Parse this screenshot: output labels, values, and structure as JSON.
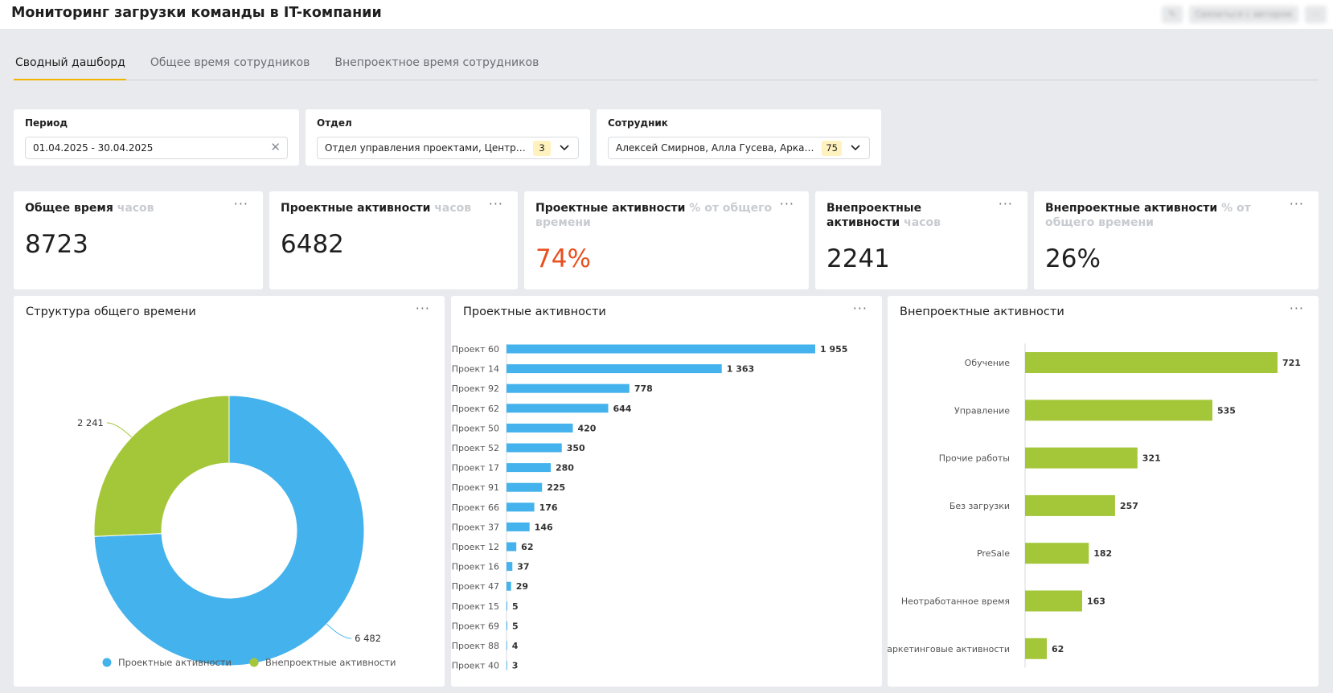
{
  "header": {
    "title": "Мониторинг загрузки команды в IT-компании",
    "actions": [
      "Связаться с автором"
    ]
  },
  "tabs": [
    {
      "label": "Сводный дашборд",
      "active": true
    },
    {
      "label": "Общее время сотрудников",
      "active": false
    },
    {
      "label": "Внепроектное время сотрудников",
      "active": false
    }
  ],
  "filters": {
    "period": {
      "label": "Период",
      "value": "01.04.2025 - 30.04.2025"
    },
    "department": {
      "label": "Отдел",
      "value": "Отдел управления проектами, Центр ан...",
      "count": "3"
    },
    "employee": {
      "label": "Сотрудник",
      "value": "Алексей Смирнов, Алла Гусева, Аркади...",
      "count": "75"
    }
  },
  "kpis": [
    {
      "title": "Общее время",
      "unit": "часов",
      "value": "8723"
    },
    {
      "title": "Проектные активности",
      "unit": "часов",
      "value": "6482"
    },
    {
      "title": "Проектные активности",
      "unit": "% от общего времени",
      "value": "74%"
    },
    {
      "title": "Внепроектные активности",
      "unit": "часов",
      "value": "2241"
    },
    {
      "title": "Внепроектные активности",
      "unit": "% от общего времени",
      "value": "26%"
    }
  ],
  "colors": {
    "blue": "#44b2ec",
    "green": "#a4c73a",
    "accent_red": "#e8501f",
    "tab_underline": "#f2b400"
  },
  "chart_data": [
    {
      "type": "pie",
      "title": "Структура общего времени",
      "categories": [
        "Проектные активности",
        "Внепроектные активности"
      ],
      "values": [
        6482,
        2241
      ],
      "labels": [
        "6 482",
        "2 241"
      ],
      "colors": [
        "#44b2ec",
        "#a4c73a"
      ],
      "donut": true,
      "legend": "bottom"
    },
    {
      "type": "bar",
      "orientation": "horizontal",
      "title": "Проектные активности",
      "categories": [
        "Проект 60",
        "Проект 14",
        "Проект 92",
        "Проект 62",
        "Проект 50",
        "Проект 52",
        "Проект 17",
        "Проект 91",
        "Проект 66",
        "Проект 37",
        "Проект 12",
        "Проект 16",
        "Проект 47",
        "Проект 15",
        "Проект 69",
        "Проект 88",
        "Проект 40"
      ],
      "values": [
        1955,
        1363,
        778,
        644,
        420,
        350,
        280,
        225,
        176,
        146,
        62,
        37,
        29,
        5,
        5,
        4,
        3
      ],
      "labels": [
        "1 955",
        "1 363",
        "778",
        "644",
        "420",
        "350",
        "280",
        "225",
        "176",
        "146",
        "62",
        "37",
        "29",
        "5",
        "5",
        "4",
        "3"
      ],
      "color": "#44b2ec",
      "grid": false
    },
    {
      "type": "bar",
      "orientation": "horizontal",
      "title": "Внепроектные активности",
      "categories": [
        "Обучение",
        "Управление",
        "Прочие работы",
        "Без загрузки",
        "PreSale",
        "Неотработанное время",
        "Маркетинговые активности"
      ],
      "values": [
        721,
        535,
        321,
        257,
        182,
        163,
        62
      ],
      "labels": [
        "721",
        "535",
        "321",
        "257",
        "182",
        "163",
        "62"
      ],
      "color": "#a4c73a",
      "grid": false
    }
  ]
}
